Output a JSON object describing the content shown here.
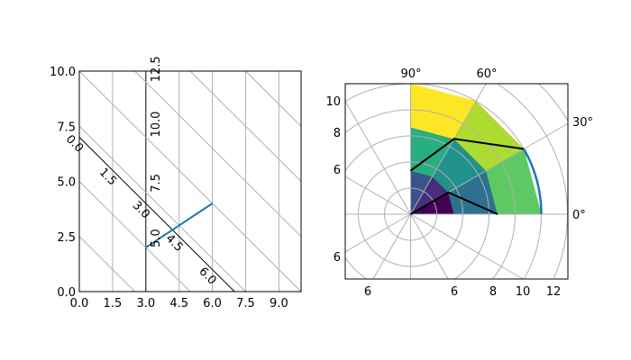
{
  "chart_data": [
    {
      "type": "line",
      "xlim": [
        0,
        10
      ],
      "ylim": [
        0,
        10
      ],
      "x_ticks": [
        "0.0",
        "1.5",
        "3.0",
        "4.5",
        "6.0",
        "7.5",
        "9.0"
      ],
      "y_ticks": [
        "0.0",
        "2.5",
        "5.0",
        "7.5",
        "10.0"
      ],
      "grid": true,
      "curvilinear_grid": {
        "vertical_lines_x": [
          1.5,
          3,
          4.5,
          6,
          7.5,
          9
        ],
        "diagonal_lines_x_plus_y": [
          2.5,
          5,
          7.5,
          10,
          12.5,
          15,
          17.5
        ]
      },
      "floating_axis_vertical": {
        "x": 3,
        "tick_labels": [
          "5.0",
          "7.5",
          "10.0",
          "12.5"
        ],
        "tick_values_x_plus_y": [
          5,
          7.5,
          10,
          12.5
        ]
      },
      "floating_axis_diagonal": {
        "x_plus_y": 7,
        "tick_labels": [
          "0.0",
          "1.5",
          "3.0",
          "4.5",
          "6.0"
        ],
        "tick_values_x": [
          0,
          1.5,
          3,
          4.5,
          6
        ]
      },
      "series": [
        {
          "x": [
            3,
            6
          ],
          "y": [
            2,
            4
          ],
          "color": "#1f77b4"
        }
      ]
    },
    {
      "type": "heatmap",
      "projection": "polar-curvilinear",
      "xlim": [
        -5,
        12
      ],
      "ylim": [
        -5,
        10
      ],
      "angle_tick_labels": [
        "90°",
        "60°",
        "30°",
        "0°"
      ],
      "left_tick_labels": [
        "10",
        "8",
        "6",
        "6"
      ],
      "bottom_tick_labels": [
        "6",
        "6",
        "8",
        "10",
        "12"
      ],
      "grid": true,
      "angle_grid_step_deg": 30,
      "radius_grid": [
        2,
        4,
        6,
        8,
        10,
        12,
        14
      ],
      "pcolor": {
        "angle_edges": [
          0,
          30,
          60,
          90
        ],
        "radius_edges": [
          0,
          3.333,
          6.667,
          10
        ],
        "values": [
          [
            0,
            1,
            2
          ],
          [
            3,
            4,
            5
          ],
          [
            6,
            7,
            8
          ]
        ],
        "colormap": "viridis"
      },
      "contour": {
        "angle_nodes": [
          0,
          30,
          60,
          90
        ],
        "radius_nodes": [
          0,
          3.333,
          6.667,
          10
        ],
        "values": [
          [
            0,
            1,
            2,
            3
          ],
          [
            4,
            5,
            6,
            7
          ],
          [
            8,
            9,
            10,
            11
          ],
          [
            12,
            13,
            14,
            15
          ]
        ],
        "levels": [
          2,
          4,
          6,
          8,
          10,
          12,
          14
        ],
        "color": "#000000"
      },
      "series": [
        {
          "angle_range": [
            0,
            30
          ],
          "radius": 10,
          "color": "#1f77b4"
        }
      ]
    }
  ]
}
